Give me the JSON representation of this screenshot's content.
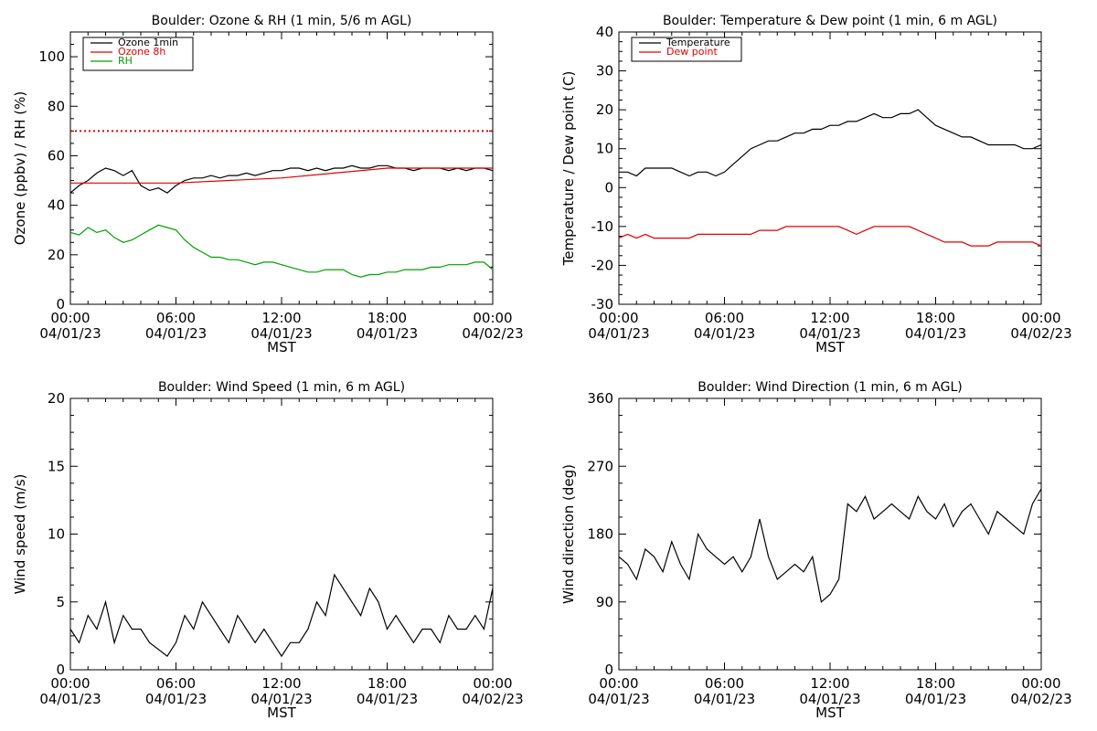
{
  "chart_data": [
    {
      "type": "line",
      "title": "Boulder: Ozone & RH (1 min, 5/6 m AGL)",
      "xlabel": "MST",
      "ylabel": "Ozone (ppbv) / RH (%)",
      "xlim": [
        "2023-04-01 00:00",
        "2023-04-02 00:00"
      ],
      "ylim": [
        0,
        110
      ],
      "yticks": [
        0,
        20,
        40,
        60,
        80,
        100
      ],
      "xticks": [
        {
          "time": "00:00",
          "date": "04/01/23"
        },
        {
          "time": "06:00",
          "date": "04/01/23"
        },
        {
          "time": "12:00",
          "date": "04/01/23"
        },
        {
          "time": "18:00",
          "date": "04/01/23"
        },
        {
          "time": "00:00",
          "date": "04/02/23"
        }
      ],
      "legend_position": "top-left",
      "reference_line": {
        "y": 70,
        "color": "#e00000",
        "style": "dotted"
      },
      "series": [
        {
          "name": "Ozone 1min",
          "color": "#000000",
          "x": [
            "00:00",
            "00:30",
            "01:00",
            "01:30",
            "02:00",
            "02:30",
            "03:00",
            "03:30",
            "04:00",
            "04:30",
            "05:00",
            "05:30",
            "06:00",
            "06:30",
            "07:00",
            "07:30",
            "08:00",
            "08:30",
            "09:00",
            "09:30",
            "10:00",
            "10:30",
            "11:00",
            "11:30",
            "12:00",
            "12:30",
            "13:00",
            "13:30",
            "14:00",
            "14:30",
            "15:00",
            "15:30",
            "16:00",
            "16:30",
            "17:00",
            "17:30",
            "18:00",
            "18:30",
            "19:00",
            "19:30",
            "20:00",
            "20:30",
            "21:00",
            "21:30",
            "22:00",
            "22:30",
            "23:00",
            "23:30",
            "24:00"
          ],
          "values": [
            45,
            48,
            50,
            53,
            55,
            54,
            52,
            54,
            48,
            46,
            47,
            45,
            48,
            50,
            51,
            51,
            52,
            51,
            52,
            52,
            53,
            52,
            53,
            54,
            54,
            55,
            55,
            54,
            55,
            54,
            55,
            55,
            56,
            55,
            55,
            56,
            56,
            55,
            55,
            54,
            55,
            55,
            55,
            54,
            55,
            54,
            55,
            55,
            54
          ]
        },
        {
          "name": "Ozone 8h",
          "color": "#e00000",
          "x": [
            "00:00",
            "06:00",
            "09:00",
            "12:00",
            "15:00",
            "18:00",
            "21:00",
            "24:00"
          ],
          "values": [
            49,
            49,
            50,
            51,
            53,
            55,
            55,
            55
          ]
        },
        {
          "name": "RH",
          "color": "#00a000",
          "x": [
            "00:00",
            "00:30",
            "01:00",
            "01:30",
            "02:00",
            "02:30",
            "03:00",
            "03:30",
            "04:00",
            "04:30",
            "05:00",
            "05:30",
            "06:00",
            "06:30",
            "07:00",
            "07:30",
            "08:00",
            "08:30",
            "09:00",
            "09:30",
            "10:00",
            "10:30",
            "11:00",
            "11:30",
            "12:00",
            "12:30",
            "13:00",
            "13:30",
            "14:00",
            "14:30",
            "15:00",
            "15:30",
            "16:00",
            "16:30",
            "17:00",
            "17:30",
            "18:00",
            "18:30",
            "19:00",
            "19:30",
            "20:00",
            "20:30",
            "21:00",
            "21:30",
            "22:00",
            "22:30",
            "23:00",
            "23:30",
            "24:00"
          ],
          "values": [
            29,
            28,
            31,
            29,
            30,
            27,
            25,
            26,
            28,
            30,
            32,
            31,
            30,
            26,
            23,
            21,
            19,
            19,
            18,
            18,
            17,
            16,
            17,
            17,
            16,
            15,
            14,
            13,
            13,
            14,
            14,
            14,
            12,
            11,
            12,
            12,
            13,
            13,
            14,
            14,
            14,
            15,
            15,
            16,
            16,
            16,
            17,
            17,
            14
          ]
        }
      ]
    },
    {
      "type": "line",
      "title": "Boulder: Temperature & Dew point (1 min, 6 m AGL)",
      "xlabel": "MST",
      "ylabel": "Temperature / Dew point (C)",
      "xlim": [
        "2023-04-01 00:00",
        "2023-04-02 00:00"
      ],
      "ylim": [
        -30,
        40
      ],
      "yticks": [
        -30,
        -20,
        -10,
        0,
        10,
        20,
        30,
        40
      ],
      "xticks": [
        {
          "time": "00:00",
          "date": "04/01/23"
        },
        {
          "time": "06:00",
          "date": "04/01/23"
        },
        {
          "time": "12:00",
          "date": "04/01/23"
        },
        {
          "time": "18:00",
          "date": "04/01/23"
        },
        {
          "time": "00:00",
          "date": "04/02/23"
        }
      ],
      "legend_position": "top-left",
      "series": [
        {
          "name": "Temperature",
          "color": "#000000",
          "x": [
            "00:00",
            "00:30",
            "01:00",
            "01:30",
            "02:00",
            "02:30",
            "03:00",
            "03:30",
            "04:00",
            "04:30",
            "05:00",
            "05:30",
            "06:00",
            "06:30",
            "07:00",
            "07:30",
            "08:00",
            "08:30",
            "09:00",
            "09:30",
            "10:00",
            "10:30",
            "11:00",
            "11:30",
            "12:00",
            "12:30",
            "13:00",
            "13:30",
            "14:00",
            "14:30",
            "15:00",
            "15:30",
            "16:00",
            "16:30",
            "17:00",
            "17:30",
            "18:00",
            "18:30",
            "19:00",
            "19:30",
            "20:00",
            "20:30",
            "21:00",
            "21:30",
            "22:00",
            "22:30",
            "23:00",
            "23:30",
            "24:00"
          ],
          "values": [
            4,
            4,
            3,
            5,
            5,
            5,
            5,
            4,
            3,
            4,
            4,
            3,
            4,
            6,
            8,
            10,
            11,
            12,
            12,
            13,
            14,
            14,
            15,
            15,
            16,
            16,
            17,
            17,
            18,
            19,
            18,
            18,
            19,
            19,
            20,
            18,
            16,
            15,
            14,
            13,
            13,
            12,
            11,
            11,
            11,
            11,
            10,
            10,
            11
          ]
        },
        {
          "name": "Dew point",
          "color": "#e00000",
          "x": [
            "00:00",
            "00:30",
            "01:00",
            "01:30",
            "02:00",
            "02:30",
            "03:00",
            "03:30",
            "04:00",
            "04:30",
            "05:00",
            "05:30",
            "06:00",
            "06:30",
            "07:00",
            "07:30",
            "08:00",
            "08:30",
            "09:00",
            "09:30",
            "10:00",
            "10:30",
            "11:00",
            "11:30",
            "12:00",
            "12:30",
            "13:00",
            "13:30",
            "14:00",
            "14:30",
            "15:00",
            "15:30",
            "16:00",
            "16:30",
            "17:00",
            "17:30",
            "18:00",
            "18:30",
            "19:00",
            "19:30",
            "20:00",
            "20:30",
            "21:00",
            "21:30",
            "22:00",
            "22:30",
            "23:00",
            "23:30",
            "24:00"
          ],
          "values": [
            -13,
            -12,
            -13,
            -12,
            -13,
            -13,
            -13,
            -13,
            -13,
            -12,
            -12,
            -12,
            -12,
            -12,
            -12,
            -12,
            -11,
            -11,
            -11,
            -10,
            -10,
            -10,
            -10,
            -10,
            -10,
            -10,
            -11,
            -12,
            -11,
            -10,
            -10,
            -10,
            -10,
            -10,
            -11,
            -12,
            -13,
            -14,
            -14,
            -14,
            -15,
            -15,
            -15,
            -14,
            -14,
            -14,
            -14,
            -14,
            -15
          ]
        }
      ]
    },
    {
      "type": "line",
      "title": "Boulder: Wind Speed (1 min, 6 m AGL)",
      "xlabel": "MST",
      "ylabel": "Wind speed (m/s)",
      "xlim": [
        "2023-04-01 00:00",
        "2023-04-02 00:00"
      ],
      "ylim": [
        0,
        20
      ],
      "yticks": [
        0,
        5,
        10,
        15,
        20
      ],
      "xticks": [
        {
          "time": "00:00",
          "date": "04/01/23"
        },
        {
          "time": "06:00",
          "date": "04/01/23"
        },
        {
          "time": "12:00",
          "date": "04/01/23"
        },
        {
          "time": "18:00",
          "date": "04/01/23"
        },
        {
          "time": "00:00",
          "date": "04/02/23"
        }
      ],
      "series": [
        {
          "color": "#000000",
          "x": [
            "00:00",
            "00:30",
            "01:00",
            "01:30",
            "02:00",
            "02:30",
            "03:00",
            "03:30",
            "04:00",
            "04:30",
            "05:00",
            "05:30",
            "06:00",
            "06:30",
            "07:00",
            "07:30",
            "08:00",
            "08:30",
            "09:00",
            "09:30",
            "10:00",
            "10:30",
            "11:00",
            "11:30",
            "12:00",
            "12:30",
            "13:00",
            "13:30",
            "14:00",
            "14:30",
            "15:00",
            "15:30",
            "16:00",
            "16:30",
            "17:00",
            "17:30",
            "18:00",
            "18:30",
            "19:00",
            "19:30",
            "20:00",
            "20:30",
            "21:00",
            "21:30",
            "22:00",
            "22:30",
            "23:00",
            "23:30",
            "24:00"
          ],
          "values": [
            3,
            2,
            4,
            3,
            5,
            2,
            4,
            3,
            3,
            2,
            1.5,
            1,
            2,
            4,
            3,
            5,
            4,
            3,
            2,
            4,
            3,
            2,
            3,
            2,
            1,
            2,
            2,
            3,
            5,
            4,
            7,
            6,
            5,
            4,
            6,
            5,
            3,
            4,
            3,
            2,
            3,
            3,
            2,
            4,
            3,
            3,
            4,
            3,
            6
          ]
        }
      ]
    },
    {
      "type": "line",
      "title": "Boulder: Wind Direction (1 min, 6 m AGL)",
      "xlabel": "MST",
      "ylabel": "Wind direction (deg)",
      "xlim": [
        "2023-04-01 00:00",
        "2023-04-02 00:00"
      ],
      "ylim": [
        0,
        360
      ],
      "yticks": [
        0,
        90,
        180,
        270,
        360
      ],
      "xticks": [
        {
          "time": "00:00",
          "date": "04/01/23"
        },
        {
          "time": "06:00",
          "date": "04/01/23"
        },
        {
          "time": "12:00",
          "date": "04/01/23"
        },
        {
          "time": "18:00",
          "date": "04/01/23"
        },
        {
          "time": "00:00",
          "date": "04/02/23"
        }
      ],
      "series": [
        {
          "color": "#000000",
          "x": [
            "00:00",
            "00:30",
            "01:00",
            "01:30",
            "02:00",
            "02:30",
            "03:00",
            "03:30",
            "04:00",
            "04:30",
            "05:00",
            "05:30",
            "06:00",
            "06:30",
            "07:00",
            "07:30",
            "08:00",
            "08:30",
            "09:00",
            "09:30",
            "10:00",
            "10:30",
            "11:00",
            "11:30",
            "12:00",
            "12:30",
            "13:00",
            "13:30",
            "14:00",
            "14:30",
            "15:00",
            "15:30",
            "16:00",
            "16:30",
            "17:00",
            "17:30",
            "18:00",
            "18:30",
            "19:00",
            "19:30",
            "20:00",
            "20:30",
            "21:00",
            "21:30",
            "22:00",
            "22:30",
            "23:00",
            "23:30",
            "24:00"
          ],
          "values": [
            150,
            140,
            120,
            160,
            150,
            130,
            170,
            140,
            120,
            180,
            160,
            150,
            140,
            150,
            130,
            150,
            200,
            150,
            120,
            130,
            140,
            130,
            150,
            90,
            100,
            120,
            220,
            210,
            230,
            200,
            210,
            220,
            210,
            200,
            230,
            210,
            200,
            220,
            190,
            210,
            220,
            200,
            180,
            210,
            200,
            190,
            180,
            220,
            240
          ]
        }
      ]
    }
  ]
}
